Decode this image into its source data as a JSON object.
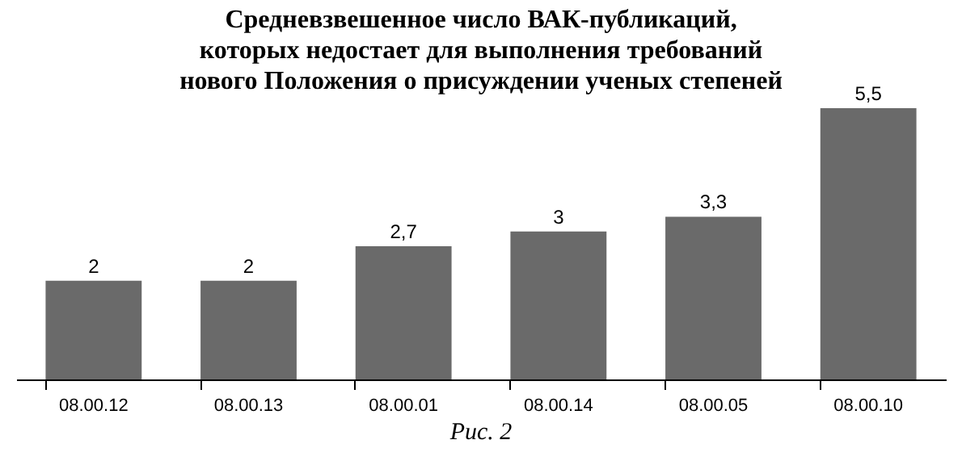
{
  "chart_data": {
    "type": "bar",
    "title": "Средневзвешенное число ВАК-публикаций,\nкоторых недостает для выполнения требований\nнового Положения о присуждении ученых степеней",
    "categories": [
      "08.00.12",
      "08.00.13",
      "08.00.01",
      "08.00.14",
      "08.00.05",
      "08.00.10"
    ],
    "values": [
      2,
      2,
      2.7,
      3,
      3.3,
      5.5
    ],
    "color": "#6a6a6a",
    "value_labels": [
      "2",
      "2",
      "2,7",
      "3",
      "3,3",
      "5,5"
    ],
    "annotations": [
      "Рис. 2"
    ]
  }
}
